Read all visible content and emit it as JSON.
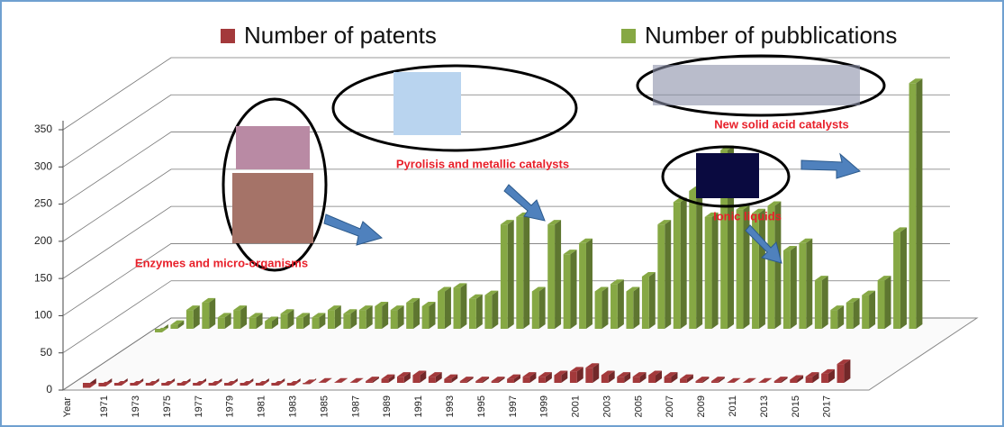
{
  "chart_data": {
    "type": "bar3d",
    "x_label": "Year",
    "categories": [
      null,
      "1971",
      null,
      "1973",
      null,
      "1975",
      null,
      "1977",
      null,
      "1979",
      null,
      "1981",
      null,
      "1983",
      null,
      "1985",
      null,
      "1987",
      null,
      "1989",
      null,
      "1991",
      null,
      "1993",
      null,
      "1995",
      null,
      "1997",
      null,
      "1999",
      null,
      "2001",
      null,
      "2003",
      null,
      "2005",
      null,
      "2007",
      null,
      "2009",
      null,
      "2011",
      null,
      "2013",
      null,
      "2015",
      null,
      "2017",
      null
    ],
    "series": [
      {
        "name": "Number of patents",
        "color": "#a3393b",
        "values": [
          3,
          5,
          6,
          6,
          6,
          6,
          6,
          6,
          6,
          6,
          6,
          6,
          6,
          6,
          8,
          10,
          10,
          10,
          12,
          15,
          18,
          20,
          18,
          15,
          12,
          12,
          12,
          15,
          18,
          18,
          20,
          25,
          30,
          20,
          18,
          18,
          20,
          18,
          15,
          12,
          12,
          10,
          10,
          10,
          12,
          14,
          18,
          22,
          35
        ]
      },
      {
        "name": "Number of pubblications",
        "color": "#86a844",
        "values": [
          5,
          15,
          35,
          45,
          25,
          35,
          25,
          20,
          30,
          25,
          25,
          35,
          30,
          35,
          40,
          35,
          45,
          40,
          60,
          65,
          50,
          55,
          150,
          160,
          60,
          150,
          110,
          125,
          60,
          70,
          60,
          80,
          150,
          180,
          195,
          160,
          250,
          170,
          165,
          175,
          115,
          125,
          75,
          35,
          45,
          55,
          75,
          140,
          340
        ]
      }
    ],
    "ylim": [
      0,
      350
    ],
    "yticks": [
      0,
      50,
      100,
      150,
      200,
      250,
      300,
      350
    ],
    "grid": true,
    "legend": "top",
    "annotations": [
      "Enzymes and micro-organisms",
      "Pyrolisis and metallic catalysts",
      "New solid acid catalysts",
      "Ionic liquids"
    ]
  }
}
